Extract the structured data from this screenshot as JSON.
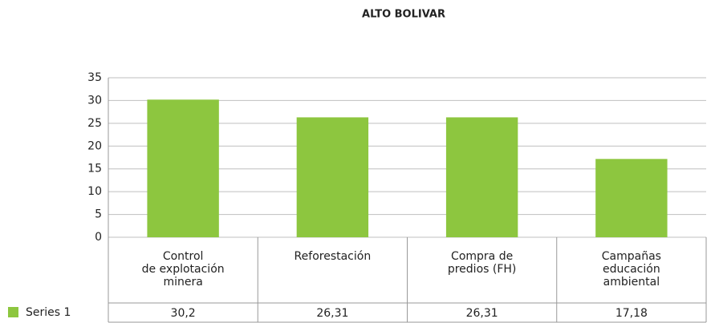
{
  "chart_data": {
    "type": "bar",
    "title": "ALTO BOLIVAR",
    "categories": [
      "Control\nde explotación\nminera",
      "Reforestación",
      "Compra de\npredios (FH)",
      "Campañas\neducación\nambiental"
    ],
    "series": [
      {
        "name": "Series 1",
        "color": "#8dc63f",
        "values": [
          30.2,
          26.31,
          26.31,
          17.18
        ],
        "value_labels": [
          "30,2",
          "26,31",
          "26,31",
          "17,18"
        ]
      }
    ],
    "ylim": [
      0,
      35
    ],
    "yticks": [
      0,
      5,
      10,
      15,
      20,
      25,
      30,
      35
    ],
    "grid": true
  }
}
